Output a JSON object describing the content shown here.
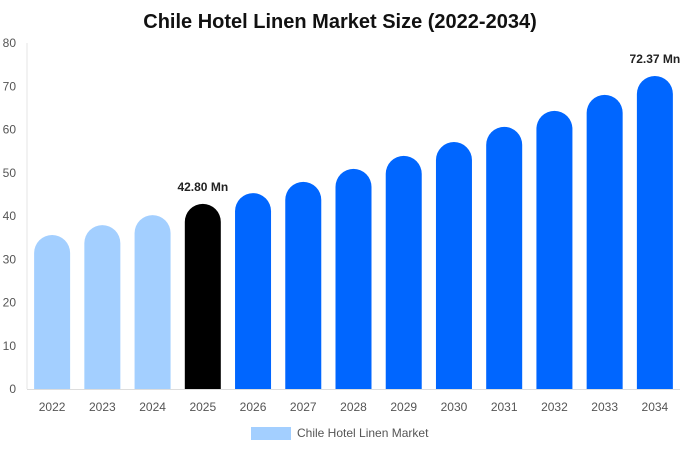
{
  "chart_data": {
    "type": "bar",
    "title": "Chile Hotel Linen Market Size (2022-2034)",
    "xlabel": "",
    "ylabel": "",
    "ylim": [
      0,
      80
    ],
    "yticks": [
      0,
      10,
      20,
      30,
      40,
      50,
      60,
      70,
      80
    ],
    "grid": false,
    "legend_position": "bottom",
    "categories": [
      "2022",
      "2023",
      "2024",
      "2025",
      "2026",
      "2027",
      "2028",
      "2029",
      "2030",
      "2031",
      "2032",
      "2033",
      "2034"
    ],
    "series": [
      {
        "name": "Chile Hotel Linen Market",
        "values": [
          35.6,
          37.9,
          40.2,
          42.8,
          45.3,
          47.9,
          50.9,
          53.9,
          57.1,
          60.6,
          64.3,
          68.0,
          72.37
        ]
      }
    ],
    "bar_colors": [
      "#a3cfff",
      "#a3cfff",
      "#a3cfff",
      "#000000",
      "#0066ff",
      "#0066ff",
      "#0066ff",
      "#0066ff",
      "#0066ff",
      "#0066ff",
      "#0066ff",
      "#0066ff",
      "#0066ff"
    ],
    "legend_color": "#a3cfff",
    "annotations": [
      {
        "category": "2025",
        "text": "42.80 Mn"
      },
      {
        "category": "2034",
        "text": "72.37 Mn"
      }
    ]
  }
}
